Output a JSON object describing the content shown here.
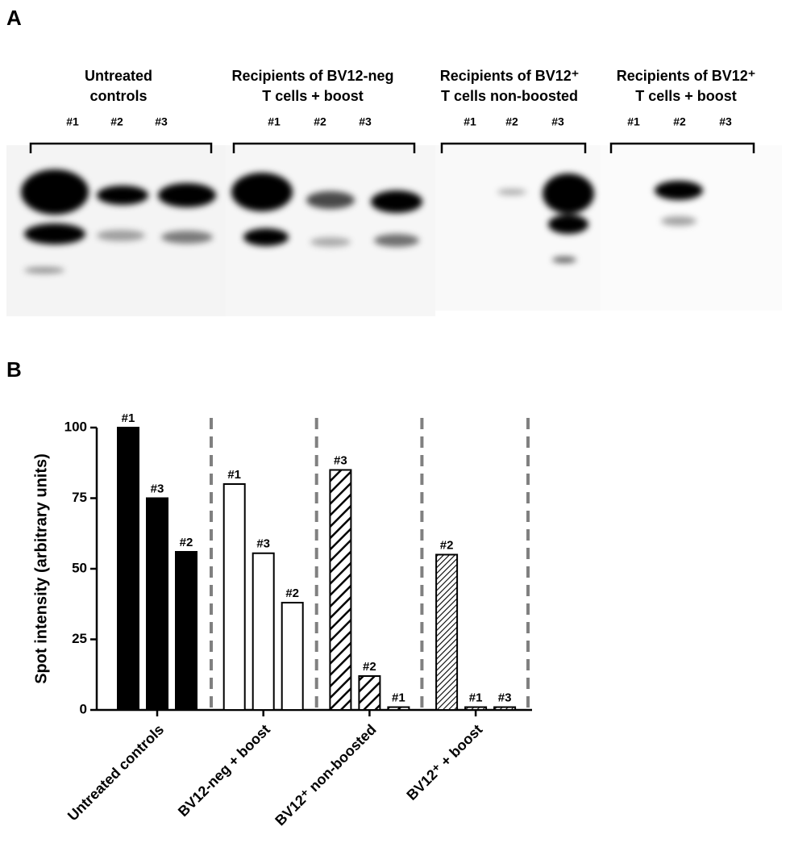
{
  "panel_a": {
    "label": "A",
    "groups": [
      {
        "title_lines": [
          "Untreated",
          "controls"
        ],
        "lanes": [
          "#1",
          "#2",
          "#3"
        ]
      },
      {
        "title_lines": [
          "Recipients of BV12-neg",
          "T cells + boost"
        ],
        "lanes": [
          "#1",
          "#2",
          "#3"
        ]
      },
      {
        "title_lines": [
          "Recipients of BV12⁺",
          "T cells non-boosted"
        ],
        "lanes": [
          "#1",
          "#2",
          "#3"
        ]
      },
      {
        "title_lines": [
          "Recipients of BV12⁺",
          "T cells + boost"
        ],
        "lanes": [
          "#1",
          "#2",
          "#3"
        ]
      }
    ]
  },
  "chart_data": {
    "type": "bar",
    "panel_label": "B",
    "ylabel": "Spot intensity (arbitrary units)",
    "ylim": [
      0,
      100
    ],
    "yticks": [
      0,
      25,
      50,
      75,
      100
    ],
    "groups": [
      {
        "category": "Untreated controls",
        "fill": "black",
        "bar_labels": [
          "#1",
          "#3",
          "#2"
        ],
        "values": [
          100,
          75,
          56
        ]
      },
      {
        "category": "BV12-neg + boost",
        "fill": "white",
        "bar_labels": [
          "#1",
          "#3",
          "#2"
        ],
        "values": [
          80,
          55.5,
          38
        ]
      },
      {
        "category": "BV12⁺ non-boosted",
        "fill": "hatch",
        "bar_labels": [
          "#3",
          "#2",
          "#1"
        ],
        "values": [
          85,
          12,
          1
        ]
      },
      {
        "category": "BV12⁺ + boost",
        "fill": "dense-hatch",
        "bar_labels": [
          "#2",
          "#1",
          "#3"
        ],
        "values": [
          55,
          1,
          1
        ]
      }
    ]
  }
}
